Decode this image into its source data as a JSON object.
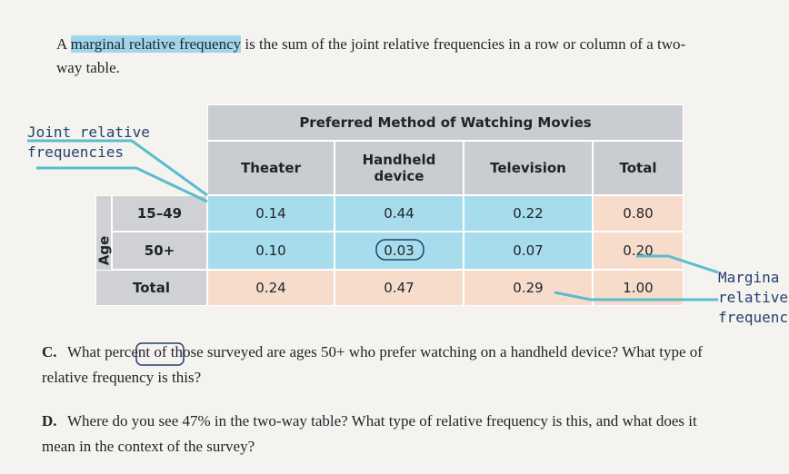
{
  "intro": {
    "before": "A ",
    "term": "marginal relative frequency",
    "after": " is the sum of the joint relative frequencies in a row or column of a two-way table."
  },
  "table": {
    "title": "Preferred Method of Watching Movies",
    "group_label": "Age",
    "columns": [
      "Theater",
      "Handheld device",
      "Television",
      "Total"
    ],
    "rows": [
      {
        "label": "15–49",
        "cells": [
          "0.14",
          "0.44",
          "0.22",
          "0.80"
        ]
      },
      {
        "label": "50+",
        "cells": [
          "0.10",
          "0.03",
          "0.07",
          "0.20"
        ]
      },
      {
        "label": "Total",
        "cells": [
          "0.24",
          "0.47",
          "0.29",
          "1.00"
        ]
      }
    ]
  },
  "callouts": {
    "joint": [
      "Joint relative",
      "frequencies"
    ],
    "marginal": [
      "Margina",
      "relative",
      "frequenc"
    ]
  },
  "questions": [
    {
      "letter": "C.",
      "text": "What percent of those surveyed are ages 50+ who prefer watching on a handheld device? What type of relative frequency is this?"
    },
    {
      "letter": "D.",
      "text": "Where do you see 47% in the two-way table? What type of relative frequency is this, and what does it mean in the context of the survey?"
    }
  ]
}
